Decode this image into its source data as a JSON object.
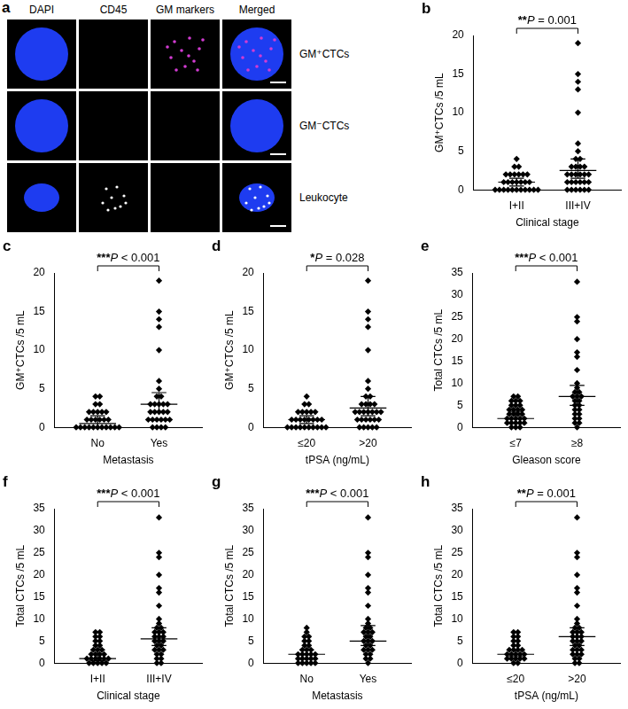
{
  "image_panel": {
    "panel": "a",
    "columns": [
      "DAPI",
      "CD45",
      "GM markers",
      "Merged"
    ],
    "rows": [
      "GM⁺CTCs",
      "GM⁻CTCs",
      "Leukocyte"
    ]
  },
  "chart_data": [
    {
      "panel": "b",
      "type": "scatter",
      "marker": "diamond",
      "color": "#000000",
      "grid": false,
      "x_label": "Clinical stage",
      "y_label": "GM⁺CTCs /5 mL",
      "categories": [
        "I+II",
        "III+IV"
      ],
      "values": [
        [
          4,
          3,
          3,
          2,
          2,
          2,
          2,
          2,
          2,
          1,
          1,
          1,
          1,
          1,
          1,
          1,
          0,
          0,
          0,
          0,
          0,
          0,
          0,
          0,
          0,
          0,
          0
        ],
        [
          19,
          15,
          14,
          13,
          10,
          6,
          5,
          4,
          4,
          3,
          3,
          3,
          3,
          2,
          2,
          2,
          2,
          2,
          2,
          1,
          1,
          1,
          1,
          1,
          1,
          0,
          0,
          0,
          0,
          0,
          0
        ]
      ],
      "center": [
        1,
        2.5
      ],
      "error": [
        [
          0.5,
          1.5
        ],
        [
          1.5,
          4
        ]
      ],
      "annotation": "**P = 0.001",
      "ylim": [
        0,
        20
      ],
      "yticks": [
        0,
        5,
        10,
        15,
        20
      ]
    },
    {
      "panel": "c",
      "type": "scatter",
      "marker": "diamond",
      "color": "#000000",
      "grid": false,
      "x_label": "Metastasis",
      "y_label": "GM⁺CTCs /5 mL",
      "categories": [
        "No",
        "Yes"
      ],
      "values": [
        [
          4,
          4,
          3,
          3,
          2,
          2,
          2,
          2,
          2,
          1,
          1,
          1,
          1,
          1,
          1,
          0,
          0,
          0,
          0,
          0,
          0,
          0,
          0,
          0,
          0,
          0
        ],
        [
          19,
          15,
          14,
          13,
          10,
          6,
          5,
          4,
          4,
          3,
          3,
          3,
          3,
          3,
          2,
          2,
          2,
          2,
          2,
          1,
          1,
          1,
          1,
          1,
          1,
          0,
          0,
          0,
          0
        ]
      ],
      "center": [
        0.5,
        3
      ],
      "error": [
        [
          0,
          1.5
        ],
        [
          2,
          4.5
        ]
      ],
      "annotation": "***P < 0.001",
      "ylim": [
        0,
        20
      ],
      "yticks": [
        0,
        5,
        10,
        15,
        20
      ]
    },
    {
      "panel": "d",
      "type": "scatter",
      "marker": "diamond",
      "color": "#000000",
      "grid": false,
      "x_label": "tPSA (ng/mL)",
      "y_label": "GM⁺CTCs /5 mL",
      "categories": [
        "≤20",
        ">20"
      ],
      "values": [
        [
          4,
          3,
          3,
          2,
          2,
          2,
          2,
          2,
          1,
          1,
          1,
          1,
          1,
          1,
          1,
          1,
          0,
          0,
          0,
          0,
          0,
          0,
          0,
          0,
          0,
          0
        ],
        [
          19,
          15,
          14,
          13,
          10,
          6,
          5,
          4,
          4,
          3,
          3,
          3,
          3,
          2,
          2,
          2,
          2,
          2,
          2,
          2,
          1,
          1,
          1,
          1,
          1,
          1,
          0,
          0,
          0,
          0,
          0
        ]
      ],
      "center": [
        1,
        2.5
      ],
      "error": [
        [
          0.5,
          1.5
        ],
        [
          1.5,
          4
        ]
      ],
      "annotation": "*P = 0.028",
      "ylim": [
        0,
        20
      ],
      "yticks": [
        0,
        5,
        10,
        15,
        20
      ]
    },
    {
      "panel": "e",
      "type": "scatter",
      "marker": "diamond",
      "color": "#000000",
      "grid": false,
      "x_label": "Gleason score",
      "y_label": "Total CTCs /5 mL",
      "categories": [
        "≤7",
        "≥8"
      ],
      "values": [
        [
          7,
          7,
          6,
          6,
          6,
          5,
          5,
          5,
          4,
          4,
          4,
          4,
          3,
          3,
          3,
          3,
          2,
          2,
          2,
          2,
          2,
          1,
          1,
          1,
          1,
          1,
          0,
          0,
          0
        ],
        [
          33,
          25,
          24,
          20,
          17,
          16,
          13,
          10,
          9,
          8,
          8,
          7,
          7,
          7,
          6,
          6,
          5,
          5,
          4,
          4,
          3,
          3,
          2,
          2,
          1,
          1,
          0
        ]
      ],
      "center": [
        2,
        7
      ],
      "error": [
        [
          1,
          3.5
        ],
        [
          5,
          9.5
        ]
      ],
      "annotation": "***P < 0.001",
      "ylim": [
        0,
        35
      ],
      "yticks": [
        0,
        5,
        10,
        15,
        20,
        25,
        30,
        35
      ]
    },
    {
      "panel": "f",
      "type": "scatter",
      "marker": "diamond",
      "color": "#000000",
      "grid": false,
      "x_label": "Clinical stage",
      "y_label": "Total CTCs /5 mL",
      "categories": [
        "I+II",
        "III+IV"
      ],
      "values": [
        [
          7,
          7,
          6,
          6,
          5,
          5,
          4,
          4,
          3,
          3,
          3,
          2,
          2,
          2,
          2,
          1,
          1,
          1,
          1,
          1,
          1,
          0,
          0,
          0,
          0,
          0
        ],
        [
          33,
          25,
          24,
          20,
          17,
          16,
          13,
          10,
          9,
          8,
          8,
          7,
          7,
          7,
          6,
          6,
          6,
          5,
          5,
          5,
          4,
          4,
          3,
          3,
          3,
          2,
          2,
          1,
          1,
          0,
          0
        ]
      ],
      "center": [
        1,
        5.5
      ],
      "error": [
        [
          0.5,
          3
        ],
        [
          4,
          8
        ]
      ],
      "annotation": "***P < 0.001",
      "ylim": [
        0,
        35
      ],
      "yticks": [
        0,
        5,
        10,
        15,
        20,
        25,
        30,
        35
      ]
    },
    {
      "panel": "g",
      "type": "scatter",
      "marker": "diamond",
      "color": "#000000",
      "grid": false,
      "x_label": "Metastasis",
      "y_label": "Total CTCs /5 mL",
      "categories": [
        "No",
        "Yes"
      ],
      "values": [
        [
          8,
          7,
          6,
          6,
          5,
          5,
          4,
          4,
          3,
          3,
          3,
          2,
          2,
          2,
          2,
          2,
          1,
          1,
          1,
          1,
          1,
          0,
          0,
          0,
          0,
          0
        ],
        [
          33,
          25,
          24,
          20,
          17,
          16,
          13,
          10,
          9,
          8,
          8,
          7,
          7,
          7,
          6,
          6,
          5,
          5,
          5,
          4,
          4,
          3,
          3,
          3,
          2,
          2,
          1,
          1,
          0
        ]
      ],
      "center": [
        2,
        5
      ],
      "error": [
        [
          1,
          3
        ],
        [
          4,
          8.5
        ]
      ],
      "annotation": "***P < 0.001",
      "ylim": [
        0,
        35
      ],
      "yticks": [
        0,
        5,
        10,
        15,
        20,
        25,
        30,
        35
      ]
    },
    {
      "panel": "h",
      "type": "scatter",
      "marker": "diamond",
      "color": "#000000",
      "grid": false,
      "x_label": "tPSA (ng/mL)",
      "y_label": "Total CTCs /5 mL",
      "categories": [
        "≤20",
        ">20"
      ],
      "values": [
        [
          7,
          7,
          6,
          6,
          5,
          5,
          4,
          4,
          3,
          3,
          3,
          3,
          2,
          2,
          2,
          2,
          2,
          1,
          1,
          1,
          1,
          1,
          0,
          0
        ],
        [
          33,
          25,
          24,
          20,
          17,
          16,
          13,
          10,
          9,
          8,
          8,
          7,
          7,
          7,
          6,
          6,
          6,
          5,
          5,
          5,
          4,
          4,
          3,
          3,
          3,
          2,
          2,
          2,
          1,
          1,
          0,
          0
        ]
      ],
      "center": [
        2,
        6
      ],
      "error": [
        [
          1.5,
          3
        ],
        [
          4,
          8
        ]
      ],
      "annotation": "**P = 0.001",
      "ylim": [
        0,
        35
      ],
      "yticks": [
        0,
        5,
        10,
        15,
        20,
        25,
        30,
        35
      ]
    }
  ]
}
